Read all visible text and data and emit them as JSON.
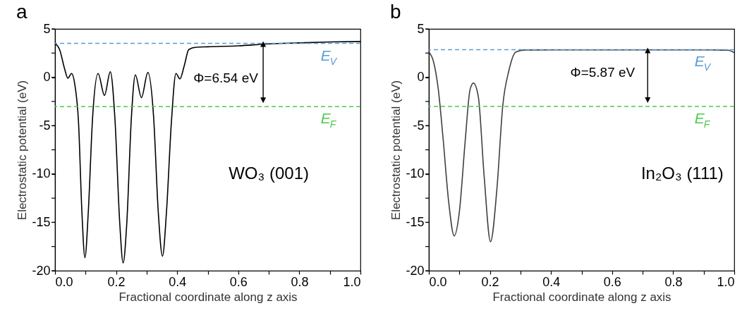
{
  "chart_data": [
    {
      "type": "line",
      "title": "a",
      "xlabel": "Fractional coordinate along z axis",
      "ylabel": "Electrostatic potential (eV)",
      "xlim": [
        0,
        1
      ],
      "ylim": [
        -20,
        5
      ],
      "xticks": [
        {
          "value": 0,
          "label": "0.0"
        },
        {
          "value": 0.1,
          "label": null
        },
        {
          "value": 0.2,
          "label": "0.2"
        },
        {
          "value": 0.3,
          "label": null
        },
        {
          "value": 0.4,
          "label": "0.4"
        },
        {
          "value": 0.5,
          "label": null
        },
        {
          "value": 0.6,
          "label": "0.6"
        },
        {
          "value": 0.7,
          "label": null
        },
        {
          "value": 0.8,
          "label": "0.8"
        },
        {
          "value": 0.9,
          "label": null
        },
        {
          "value": 1,
          "label": "1.0"
        }
      ],
      "yticks": [
        5,
        {
          "value": 2.5,
          "label": null
        },
        0,
        {
          "value": -2.5,
          "label": null
        },
        -5,
        {
          "value": -7.5,
          "label": null
        },
        -10,
        {
          "value": -12.5,
          "label": null
        },
        -15,
        {
          "value": -17.5,
          "label": null
        },
        -20
      ],
      "series": [
        {
          "color": "#000000",
          "x": [
            0,
            0.015,
            0.031,
            0.042,
            0.054,
            0.065,
            0.077,
            0.088,
            0.098,
            0.109,
            0.123,
            0.141,
            0.162,
            0.181,
            0.196,
            0.212,
            0.223,
            0.235,
            0.25,
            0.263,
            0.283,
            0.304,
            0.323,
            0.338,
            0.352,
            0.365,
            0.381,
            0.396,
            0.409,
            0.423,
            0.438,
            0.462,
            0.5,
            0.6,
            0.7,
            0.8,
            0.9,
            1
          ],
          "values": [
            3.48,
            2.87,
            0.92,
            -0.1,
            0.39,
            -0.78,
            -4.67,
            -13.9,
            -18.66,
            -13.9,
            -4.2,
            0.39,
            -1.87,
            0.56,
            -4.2,
            -15.1,
            -19.2,
            -15.1,
            -4.2,
            0.24,
            -2.1,
            0.49,
            -4.2,
            -13.9,
            -18.5,
            -13.9,
            -4.67,
            0.39,
            -0.17,
            1.17,
            2.87,
            3.1,
            3.15,
            3.25,
            3.45,
            3.55,
            3.65,
            3.7
          ]
        }
      ],
      "ref_lines": [
        {
          "axis": "y",
          "value": 3.5,
          "label": "E$_{V}$",
          "color": "#5b9bd5",
          "line_style": "dashed"
        },
        {
          "axis": "y",
          "value": -3.04,
          "label": "E$_{F}$",
          "color": "#4fc84f",
          "line_style": "dashed"
        }
      ],
      "annotations": [
        "Φ=6.54 eV",
        "WO₃ (001)"
      ]
    },
    {
      "type": "line",
      "title": "b",
      "xlabel": "Fractional coordinate along z axis",
      "ylabel": "Electrostatic potential (eV)",
      "xlim": [
        0,
        1
      ],
      "ylim": [
        -20,
        5
      ],
      "xticks": [
        {
          "value": 0,
          "label": "0.0"
        },
        {
          "value": 0.1,
          "label": null
        },
        {
          "value": 0.2,
          "label": "0.2"
        },
        {
          "value": 0.3,
          "label": null
        },
        {
          "value": 0.4,
          "label": "0.4"
        },
        {
          "value": 0.5,
          "label": null
        },
        {
          "value": 0.6,
          "label": "0.6"
        },
        {
          "value": 0.7,
          "label": null
        },
        {
          "value": 0.8,
          "label": "0.8"
        },
        {
          "value": 0.9,
          "label": null
        },
        {
          "value": 1,
          "label": "1.0"
        }
      ],
      "yticks": [
        5,
        {
          "value": 2.5,
          "label": null
        },
        0,
        {
          "value": -2.5,
          "label": null
        },
        -5,
        {
          "value": -7.5,
          "label": null
        },
        -10,
        {
          "value": -12.5,
          "label": null
        },
        -15,
        {
          "value": -17.5,
          "label": null
        },
        -20
      ],
      "series": [
        {
          "color": "#404040",
          "x": [
            0,
            0.015,
            0.031,
            0.046,
            0.065,
            0.083,
            0.1,
            0.119,
            0.135,
            0.146,
            0.162,
            0.181,
            0.202,
            0.223,
            0.242,
            0.262,
            0.285,
            0.315,
            0.5,
            0.7,
            0.9,
            0.98,
            1
          ],
          "values": [
            2.62,
            1.65,
            -1.26,
            -6.1,
            -12.9,
            -16.4,
            -13.9,
            -6.6,
            -1.26,
            -0.6,
            -2,
            -10.2,
            -17,
            -11.5,
            -2.96,
            0.68,
            2.62,
            2.82,
            2.83,
            2.83,
            2.83,
            2.8,
            2.55
          ]
        }
      ],
      "ref_lines": [
        {
          "axis": "y",
          "value": 2.85,
          "label": "E$_{V}$",
          "color": "#5b9bd5",
          "line_style": "dashed"
        },
        {
          "axis": "y",
          "value": -3.02,
          "label": "E$_{F}$",
          "color": "#4fc84f",
          "line_style": "dashed"
        }
      ],
      "annotations": [
        "Φ=5.87 eV",
        "In₂O₃ (111)"
      ]
    }
  ]
}
